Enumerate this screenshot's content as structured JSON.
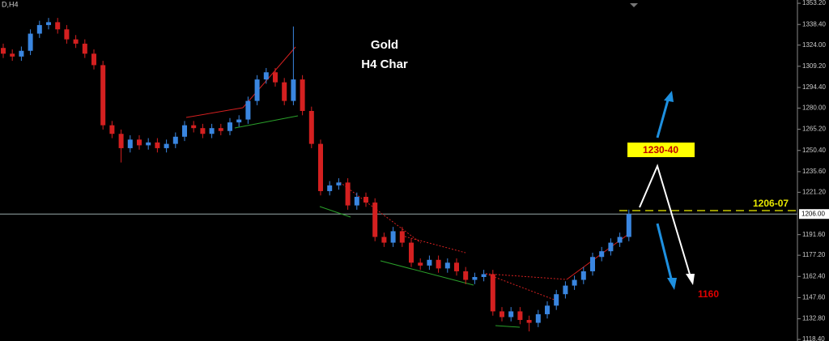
{
  "chart_data": {
    "type": "candlestick",
    "symbol": "D,H4",
    "title": "Gold",
    "subtitle": "H4 Char",
    "annotations": [
      "1230-40",
      "1206-07",
      "1160"
    ],
    "up_color": "#3a86e0",
    "down_color": "#d42020",
    "ylim": [
      1117.3,
      1355.5
    ],
    "yticks": [
      {
        "value": 1353.2,
        "label": "1353.20"
      },
      {
        "value": 1338.4,
        "label": "1338.40"
      },
      {
        "value": 1324,
        "label": "1324.00"
      },
      {
        "value": 1309.2,
        "label": "1309.20"
      },
      {
        "value": 1294.4,
        "label": "1294.40"
      },
      {
        "value": 1280,
        "label": "1280.00"
      },
      {
        "value": 1265.2,
        "label": "1265.20"
      },
      {
        "value": 1250.4,
        "label": "1250.40"
      },
      {
        "value": 1235.6,
        "label": "1235.60"
      },
      {
        "value": 1221.2,
        "label": "1221.20"
      },
      {
        "value": 1191.6,
        "label": "1191.60"
      },
      {
        "value": 1177.2,
        "label": "1177.20"
      },
      {
        "value": 1162.4,
        "label": "1162.40"
      },
      {
        "value": 1147.6,
        "label": "1147.60"
      },
      {
        "value": 1132.8,
        "label": "1132.80"
      },
      {
        "value": 1118.4,
        "label": "1118.40"
      }
    ],
    "price_line": {
      "value": 1206,
      "label": "1206.00"
    },
    "open": [
      1322,
      1318,
      1316,
      1320,
      1332,
      1338,
      1340,
      1335,
      1328,
      1325,
      1318,
      1310,
      1268,
      1262,
      1252,
      1258,
      1254,
      1256,
      1252,
      1255,
      1260,
      1268,
      1266,
      1262,
      1266,
      1264,
      1270,
      1272,
      1285,
      1300,
      1305,
      1298,
      1285,
      1300,
      1278,
      1255,
      1222,
      1226,
      1228,
      1212,
      1218,
      1214,
      1190,
      1186,
      1194,
      1186,
      1172,
      1170,
      1174,
      1168,
      1172,
      1166,
      1160,
      1162,
      1164,
      1138,
      1134,
      1138,
      1132,
      1130,
      1136,
      1142,
      1150,
      1156,
      1160,
      1166,
      1176,
      1180,
      1186,
      1190
    ],
    "high": [
      1325,
      1321,
      1323,
      1335,
      1341,
      1343,
      1343,
      1338,
      1331,
      1328,
      1321,
      1313,
      1271,
      1265,
      1261,
      1261,
      1259,
      1259,
      1258,
      1263,
      1271,
      1271,
      1269,
      1269,
      1269,
      1273,
      1275,
      1288,
      1303,
      1308,
      1308,
      1301,
      1337,
      1303,
      1281,
      1258,
      1229,
      1231,
      1231,
      1221,
      1221,
      1217,
      1193,
      1197,
      1197,
      1189,
      1175,
      1177,
      1177,
      1175,
      1175,
      1169,
      1165,
      1167,
      1167,
      1141,
      1141,
      1141,
      1135,
      1139,
      1145,
      1153,
      1159,
      1163,
      1169,
      1179,
      1183,
      1189,
      1193,
      1209
    ],
    "low": [
      1315,
      1313,
      1313,
      1317,
      1329,
      1335,
      1332,
      1325,
      1322,
      1315,
      1307,
      1265,
      1259,
      1242,
      1249,
      1251,
      1251,
      1249,
      1249,
      1252,
      1257,
      1263,
      1259,
      1259,
      1261,
      1261,
      1267,
      1269,
      1282,
      1297,
      1295,
      1282,
      1282,
      1275,
      1252,
      1219,
      1219,
      1223,
      1209,
      1209,
      1211,
      1187,
      1183,
      1183,
      1183,
      1169,
      1167,
      1167,
      1165,
      1165,
      1163,
      1157,
      1157,
      1159,
      1135,
      1131,
      1131,
      1129,
      1124,
      1127,
      1133,
      1139,
      1147,
      1153,
      1157,
      1163,
      1173,
      1177,
      1183,
      1187
    ],
    "close": [
      1318,
      1316,
      1320,
      1332,
      1338,
      1340,
      1335,
      1328,
      1325,
      1318,
      1310,
      1268,
      1262,
      1252,
      1258,
      1254,
      1256,
      1252,
      1255,
      1260,
      1268,
      1266,
      1262,
      1266,
      1264,
      1270,
      1272,
      1285,
      1300,
      1305,
      1298,
      1285,
      1300,
      1278,
      1255,
      1222,
      1226,
      1228,
      1212,
      1218,
      1214,
      1190,
      1186,
      1194,
      1186,
      1172,
      1170,
      1174,
      1168,
      1172,
      1166,
      1160,
      1162,
      1164,
      1138,
      1134,
      1138,
      1132,
      1130,
      1136,
      1142,
      1150,
      1156,
      1160,
      1166,
      1176,
      1180,
      1186,
      1190,
      1206
    ]
  }
}
